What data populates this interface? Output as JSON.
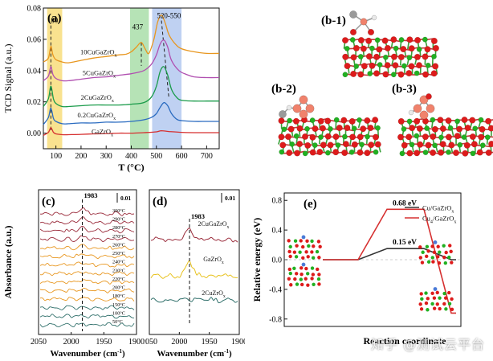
{
  "panel_labels": {
    "a": "(a)",
    "b1": "(b-1)",
    "b2": "(b-2)",
    "b3": "(b-3)",
    "c": "(c)",
    "d": "(d)",
    "e": "(e)"
  },
  "colors": {
    "orange": "#e8961e",
    "purple": "#b04fb0",
    "green": "#1a9b4a",
    "blue": "#2a6bc0",
    "red": "#d63030",
    "yellow_band": "#f7d86a",
    "green_band": "#9ed99e",
    "blue_band": "#a9c2ee",
    "atom_o": "#dd1b1b",
    "atom_zr": "#21b021",
    "atom_cu": "#f0826c",
    "atom_c": "#9a9a9a",
    "atom_h": "#e9e9e9"
  },
  "watermark": "知乎 @测试云平台",
  "chart_data": [
    {
      "id": "a",
      "type": "line",
      "xlabel": "T (°C)",
      "ylabel": "TCD Signal (a.u.)",
      "xlim": [
        50,
        750
      ],
      "ylim": [
        -0.01,
        0.08
      ],
      "xticks": [
        100,
        200,
        300,
        400,
        500,
        600,
        700
      ],
      "yticks": [
        0.0,
        0.02,
        0.04,
        0.06,
        0.08
      ],
      "ytick_labels": [
        "0.00",
        "0.02",
        "0.04",
        "0.06",
        "0.08"
      ],
      "bands": [
        {
          "from": 65,
          "to": 125,
          "color": "yellow_band"
        },
        {
          "from": 395,
          "to": 470,
          "color": "green_band"
        },
        {
          "from": 483,
          "to": 600,
          "color": "blue_band"
        }
      ],
      "annotations": [
        {
          "text": "80",
          "x": 94,
          "y": 0.0705
        },
        {
          "text": "437",
          "x": 425,
          "y": 0.0665
        },
        {
          "text": "520-550",
          "x": 550,
          "y": 0.0735
        }
      ],
      "dashed_lines": [
        {
          "x1": 80,
          "y1": 0.002,
          "x2": 80,
          "y2": 0.069
        },
        {
          "x1": 440,
          "y1": 0.058,
          "x2": 440,
          "y2": 0.043
        },
        {
          "x1": 520,
          "y1": 0.072,
          "x2": 550,
          "y2": 0.022
        }
      ],
      "series": [
        {
          "name": "10CuGaZrOx",
          "label": "10CuGaZrOx",
          "color": "orange",
          "x": [
            50,
            70,
            80,
            88,
            100,
            125,
            150,
            200,
            250,
            300,
            350,
            380,
            400,
            420,
            440,
            455,
            470,
            490,
            505,
            520,
            535,
            550,
            575,
            600,
            650,
            700,
            750
          ],
          "y": [
            0.0455,
            0.048,
            0.0555,
            0.05,
            0.047,
            0.0455,
            0.045,
            0.0465,
            0.048,
            0.049,
            0.05,
            0.0505,
            0.052,
            0.055,
            0.058,
            0.054,
            0.051,
            0.06,
            0.071,
            0.0755,
            0.0705,
            0.063,
            0.057,
            0.054,
            0.052,
            0.051,
            0.051
          ],
          "label_pos": [
            270,
            0.0505
          ]
        },
        {
          "name": "5CuGaZrOx",
          "label": "5CuGaZrOx",
          "color": "purple",
          "x": [
            50,
            70,
            80,
            88,
            100,
            125,
            150,
            200,
            250,
            300,
            350,
            400,
            450,
            480,
            500,
            515,
            530,
            545,
            560,
            590,
            620,
            650,
            700,
            750
          ],
          "y": [
            0.0335,
            0.0365,
            0.0425,
            0.0375,
            0.035,
            0.0335,
            0.0335,
            0.0345,
            0.0355,
            0.036,
            0.037,
            0.038,
            0.04,
            0.044,
            0.05,
            0.057,
            0.0595,
            0.055,
            0.0465,
            0.04,
            0.0375,
            0.036,
            0.0355,
            0.0355
          ],
          "label_pos": [
            272,
            0.037
          ]
        },
        {
          "name": "2CuGaZrOx",
          "label": "2CuGaZrOx",
          "color": "green",
          "x": [
            50,
            70,
            80,
            90,
            100,
            125,
            150,
            200,
            250,
            300,
            350,
            400,
            450,
            480,
            500,
            515,
            530,
            545,
            560,
            580,
            600,
            650,
            700,
            750
          ],
          "y": [
            0.017,
            0.022,
            0.03,
            0.022,
            0.019,
            0.017,
            0.017,
            0.0175,
            0.018,
            0.018,
            0.018,
            0.0185,
            0.0195,
            0.023,
            0.03,
            0.0395,
            0.0425,
            0.037,
            0.028,
            0.023,
            0.021,
            0.0205,
            0.0205,
            0.0205
          ],
          "label_pos": [
            265,
            0.0215
          ]
        },
        {
          "name": "0.2CuGaZrOx",
          "label": "0.2CuGaZrOx",
          "color": "blue",
          "x": [
            50,
            70,
            80,
            90,
            100,
            125,
            150,
            200,
            250,
            300,
            350,
            400,
            450,
            480,
            500,
            515,
            530,
            545,
            560,
            580,
            600,
            650,
            700,
            750
          ],
          "y": [
            0.0055,
            0.01,
            0.016,
            0.0095,
            0.0075,
            0.006,
            0.006,
            0.0065,
            0.0065,
            0.007,
            0.007,
            0.0075,
            0.0085,
            0.01,
            0.0125,
            0.0165,
            0.0195,
            0.0175,
            0.0125,
            0.009,
            0.008,
            0.0075,
            0.0075,
            0.0075
          ],
          "label_pos": [
            262,
            0.01
          ]
        },
        {
          "name": "GaZrOx",
          "label": "GaZrOx",
          "color": "red",
          "x": [
            50,
            70,
            80,
            90,
            100,
            125,
            150,
            200,
            250,
            300,
            350,
            400,
            450,
            500,
            520,
            550,
            600,
            650,
            700,
            750
          ],
          "y": [
            -0.0015,
            0.0005,
            0.0035,
            0.0005,
            -0.0005,
            -0.001,
            -0.001,
            -0.0008,
            -0.0005,
            -0.0003,
            0.0,
            0.0,
            0.0003,
            0.0008,
            0.0015,
            0.001,
            0.0005,
            0.0003,
            0.0003,
            0.0003
          ],
          "label_pos": [
            285,
            -0.0005
          ]
        }
      ]
    },
    {
      "id": "c",
      "type": "line",
      "xlabel": "Wavenumber (cm-1)",
      "ylabel": "Absorbance (a.u.)",
      "xlim": [
        2050,
        1900
      ],
      "xticks": [
        2050,
        2000,
        1950,
        1900
      ],
      "peak_label": "1983",
      "peak_x": 1983,
      "scale_label": "0.01",
      "series": [
        {
          "label": "300°C",
          "color": "#9a2a3a"
        },
        {
          "label": "290°C",
          "color": "#9a2a3a"
        },
        {
          "label": "280°C",
          "color": "#9a2a3a"
        },
        {
          "label": "270°C",
          "color": "#9a2a3a"
        },
        {
          "label": "260°C",
          "color": "#e8961e"
        },
        {
          "label": "250°C",
          "color": "#e8961e"
        },
        {
          "label": "240°C",
          "color": "#e8961e"
        },
        {
          "label": "230°C",
          "color": "#e8961e"
        },
        {
          "label": "220°C",
          "color": "#e8961e"
        },
        {
          "label": "200°C",
          "color": "#e8961e"
        },
        {
          "label": "180°C",
          "color": "#e8961e"
        },
        {
          "label": "150°C",
          "color": "#2f6f6a"
        },
        {
          "label": "100°C",
          "color": "#2f6f6a"
        },
        {
          "label": "50°C",
          "color": "#2f6f6a"
        }
      ]
    },
    {
      "id": "d",
      "type": "line",
      "xlabel": "Wavenumber (cm-1)",
      "ylabel": "",
      "xlim": [
        2050,
        1900
      ],
      "xticks": [
        2050,
        2000,
        1950,
        1900
      ],
      "peak_label": "1983",
      "peak_x": 1983,
      "scale_label": "0.01",
      "series": [
        {
          "label": "2CuGaZrOx",
          "color": "#9a2a3a"
        },
        {
          "label": "GaZrOx",
          "color": "#e8c21e"
        },
        {
          "label": "2CuZrOx",
          "color": "#2f6f6a"
        }
      ]
    },
    {
      "id": "e",
      "type": "line",
      "xlabel": "Reaction coordinate",
      "ylabel": "Relative energy (eV)",
      "ylim": [
        -0.9,
        0.9
      ],
      "yticks": [
        -0.8,
        -0.4,
        0.0,
        0.4,
        0.8
      ],
      "ytick_labels": [
        "-0.8",
        "-0.4",
        "0.0",
        "0.4",
        "0.8"
      ],
      "series": [
        {
          "name": "Cu/GaZrOx",
          "label": "Cu/GaZrOx",
          "color": "#333333",
          "levels": [
            0.0,
            0.15,
            0.0
          ]
        },
        {
          "name": "Cu4/GaZrOx",
          "label": "Cu4/GaZrOx",
          "color": "red",
          "levels": [
            0.0,
            0.68,
            -0.72
          ]
        }
      ],
      "annotations": [
        {
          "text": "0.68 eV",
          "value": 0.68
        },
        {
          "text": "0.15 eV",
          "value": 0.15
        }
      ]
    }
  ]
}
